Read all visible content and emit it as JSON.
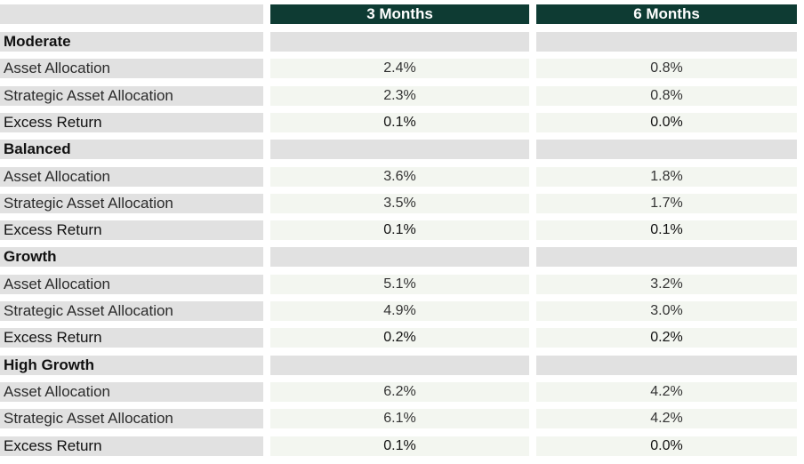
{
  "columns": [
    "3 Months",
    "6 Months"
  ],
  "groups": [
    {
      "name": "Moderate",
      "rows": [
        {
          "label": "Asset Allocation",
          "m3": "2.4%",
          "m6": "0.8%"
        },
        {
          "label": "Strategic Asset Allocation",
          "m3": "2.3%",
          "m6": "0.8%"
        },
        {
          "label": "Excess Return",
          "m3": "0.1%",
          "m6": "0.0%"
        }
      ]
    },
    {
      "name": "Balanced",
      "rows": [
        {
          "label": "Asset Allocation",
          "m3": "3.6%",
          "m6": "1.8%"
        },
        {
          "label": "Strategic Asset Allocation",
          "m3": "3.5%",
          "m6": "1.7%"
        },
        {
          "label": "Excess Return",
          "m3": "0.1%",
          "m6": "0.1%"
        }
      ]
    },
    {
      "name": "Growth",
      "rows": [
        {
          "label": "Asset Allocation",
          "m3": "5.1%",
          "m6": "3.2%"
        },
        {
          "label": "Strategic Asset Allocation",
          "m3": "4.9%",
          "m6": "3.0%"
        },
        {
          "label": "Excess Return",
          "m3": "0.2%",
          "m6": "0.2%"
        }
      ]
    },
    {
      "name": "High Growth",
      "rows": [
        {
          "label": "Asset Allocation",
          "m3": "6.2%",
          "m6": "4.2%"
        },
        {
          "label": "Strategic Asset Allocation",
          "m3": "6.1%",
          "m6": "4.2%"
        },
        {
          "label": "Excess Return",
          "m3": "0.1%",
          "m6": "0.0%"
        }
      ]
    }
  ]
}
